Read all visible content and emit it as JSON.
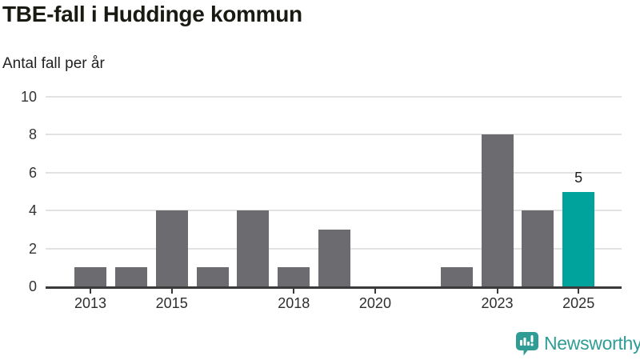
{
  "chart_data": {
    "type": "bar",
    "title": "TBE-fall i Huddinge kommun",
    "subtitle": "Antal fall per år",
    "categories": [
      "2013",
      "2014",
      "2015",
      "2016",
      "2017",
      "2018",
      "2019",
      "2020",
      "2021",
      "2022",
      "2023",
      "2024",
      "2025"
    ],
    "values": [
      1,
      1,
      4,
      1,
      4,
      1,
      3,
      0,
      0,
      1,
      8,
      4,
      5
    ],
    "xticks": [
      "2013",
      "2015",
      "2018",
      "2020",
      "2023",
      "2025"
    ],
    "yticks": [
      0,
      2,
      4,
      6,
      8,
      10
    ],
    "ylim": [
      0,
      10
    ],
    "grid": "horizontal",
    "legend": "none",
    "highlight": {
      "category": "2025",
      "value_label": "5"
    },
    "colors": {
      "bar": "#6b6b70",
      "highlight": "#00a39b",
      "axis": "#3a3a3a",
      "gridline": "#e2e2e2",
      "title_text": "#191a12",
      "tick_text": "#333333"
    }
  },
  "footer": {
    "brand": "Newsworthy",
    "brand_color": "#2f9c95",
    "logo_icon": "newsworthy-speech-bubble-bar-chart-icon"
  }
}
